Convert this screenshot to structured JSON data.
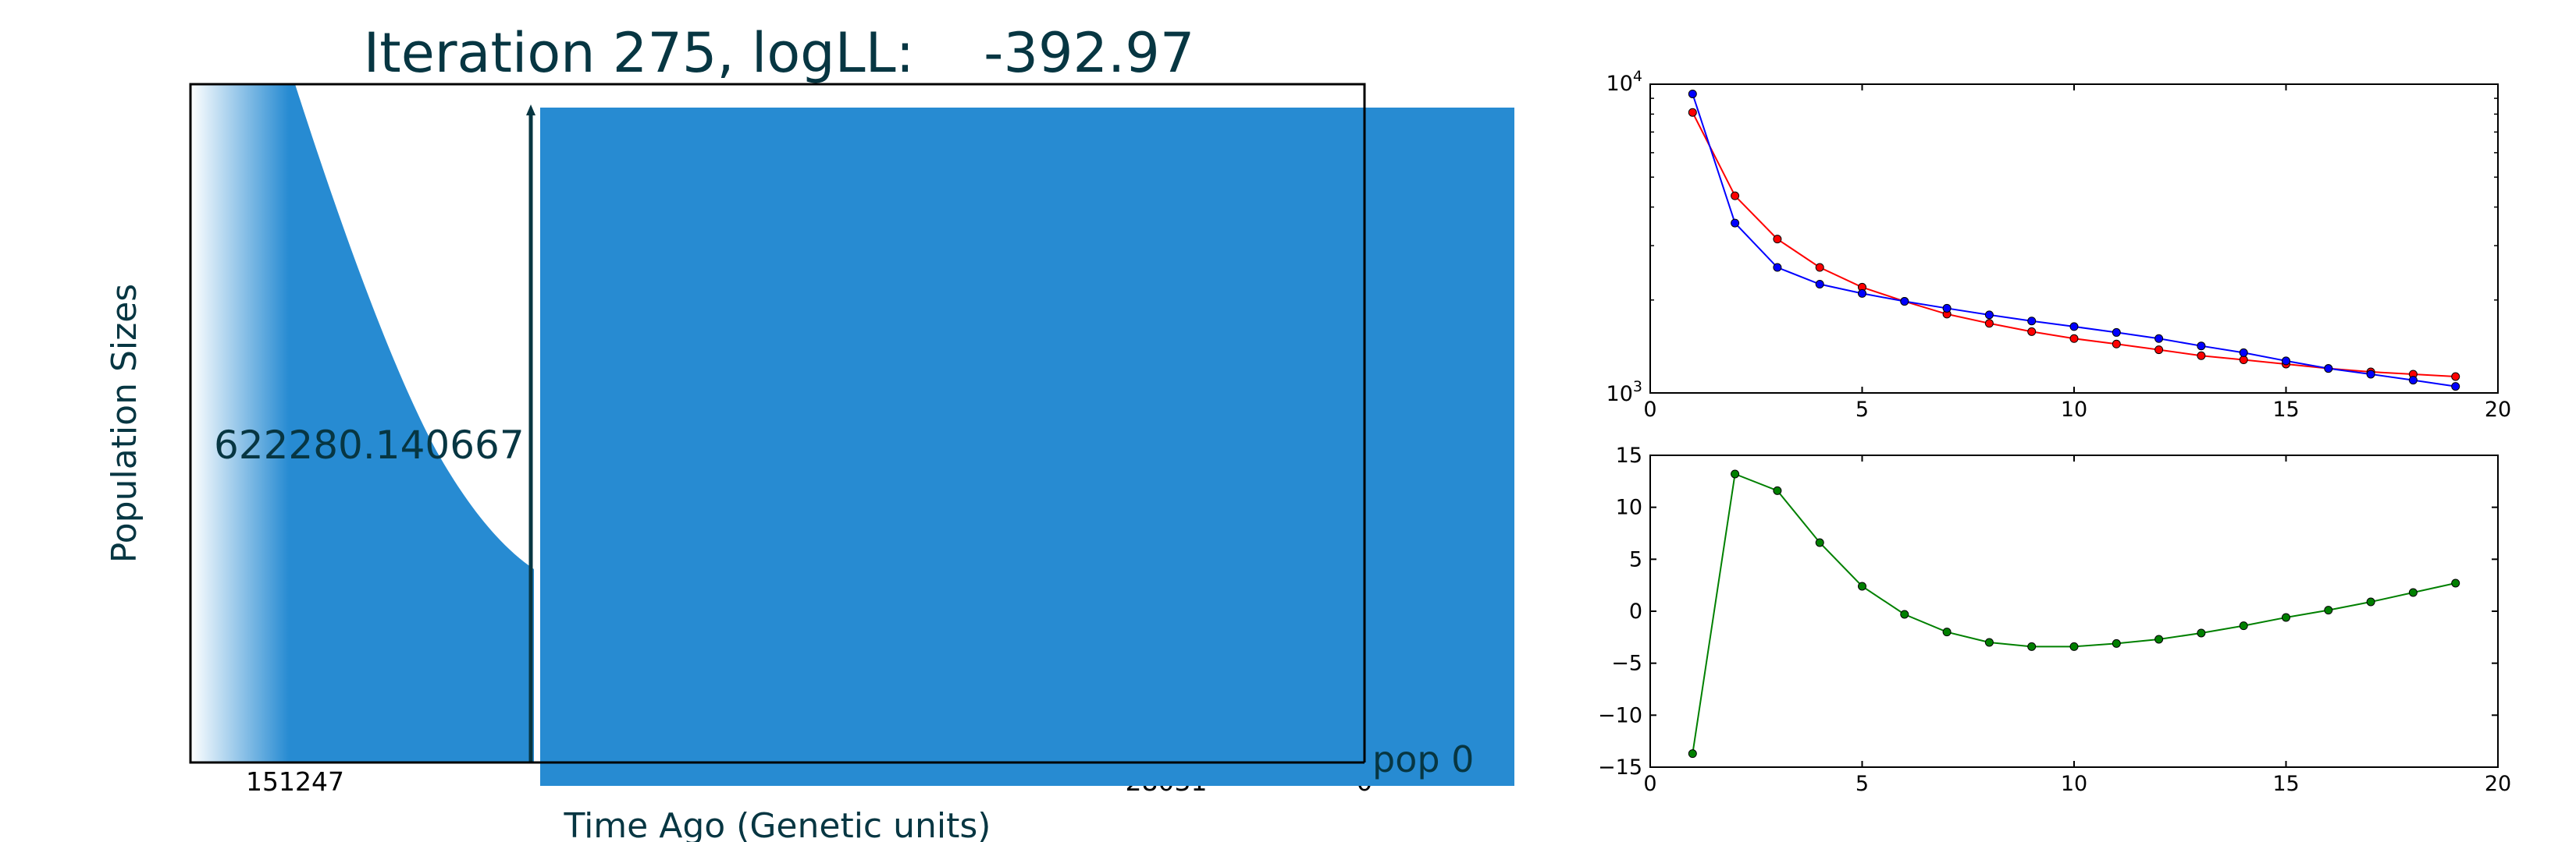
{
  "figure": {
    "title": "Iteration 275, logLL:    -392.97",
    "colors": {
      "pop_fill": "#278bd2",
      "text_dark": "#073642",
      "series_red": "#ff0000",
      "series_blue": "#0000ff",
      "series_green": "#008000"
    }
  },
  "chart_data": [
    {
      "type": "area",
      "title": "Iteration 275, logLL:    -392.97",
      "xlabel": "Time Ago (Genetic units)",
      "ylabel": "Population Sizes",
      "x_tick_labels": [
        "151247",
        "28031",
        "0"
      ],
      "annotations": [
        "622280.140667",
        "pop 0"
      ],
      "series": [
        {
          "name": "pop 0",
          "values": []
        }
      ]
    },
    {
      "type": "line",
      "x": [
        1,
        2,
        3,
        4,
        5,
        6,
        7,
        8,
        9,
        10,
        11,
        12,
        13,
        14,
        15,
        16,
        17,
        18,
        19
      ],
      "xlim": [
        0,
        20
      ],
      "ylim": [
        1000,
        10000
      ],
      "yscale": "log",
      "x_ticks": [
        0,
        5,
        10,
        15,
        20
      ],
      "y_tick_labels": [
        "10",
        "10"
      ],
      "y_tick_exponents": [
        "3",
        "4"
      ],
      "series": [
        {
          "values": [
            8100,
            4350,
            3150,
            2550,
            2200,
            1980,
            1800,
            1680,
            1580,
            1500,
            1440,
            1380,
            1320,
            1280,
            1240,
            1200,
            1170,
            1150,
            1130
          ],
          "color": "#ff0000"
        },
        {
          "values": [
            9300,
            3550,
            2550,
            2250,
            2100,
            1980,
            1880,
            1790,
            1710,
            1640,
            1570,
            1500,
            1420,
            1350,
            1270,
            1200,
            1150,
            1100,
            1050
          ],
          "color": "#0000ff"
        }
      ]
    },
    {
      "type": "line",
      "x": [
        1,
        2,
        3,
        4,
        5,
        6,
        7,
        8,
        9,
        10,
        11,
        12,
        13,
        14,
        15,
        16,
        17,
        18,
        19
      ],
      "xlim": [
        0,
        20
      ],
      "ylim": [
        -15,
        15
      ],
      "x_ticks": [
        0,
        5,
        10,
        15,
        20
      ],
      "y_ticks": [
        15,
        10,
        5,
        0,
        -5,
        -10,
        -15
      ],
      "series": [
        {
          "values": [
            -13.7,
            13.2,
            11.6,
            6.6,
            2.4,
            -0.3,
            -2.0,
            -3.0,
            -3.4,
            -3.4,
            -3.1,
            -2.7,
            -2.1,
            -1.4,
            -0.6,
            0.1,
            0.9,
            1.8,
            2.7
          ],
          "color": "#008000"
        }
      ]
    }
  ]
}
